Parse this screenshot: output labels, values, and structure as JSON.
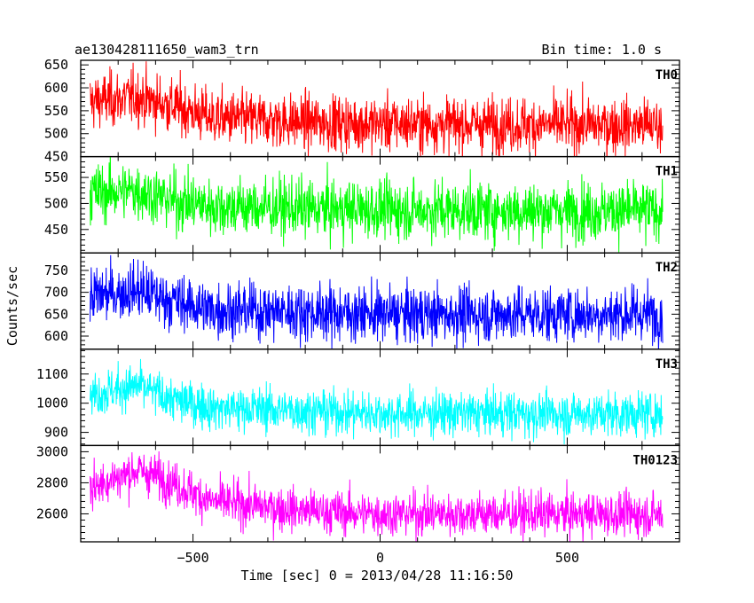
{
  "chart_data": {
    "type": "line",
    "title": "ae130428111650_wam3_trn",
    "bin_time_label": "Bin time: 1.0 s",
    "xlabel": "Time [sec] 0 = 2013/04/28 11:16:50",
    "ylabel": "Counts/sec",
    "xlim": [
      -800,
      800
    ],
    "x_ticks": [
      -500,
      0,
      500
    ],
    "x_tick_labels": [
      "−500",
      "0",
      "500"
    ],
    "x_data_range": [
      -775,
      755
    ],
    "grid": false,
    "panels": [
      {
        "name": "TH0",
        "color": "#ff0000",
        "ylim": [
          450,
          660
        ],
        "y_ticks": [
          450,
          500,
          550,
          600,
          650
        ],
        "y_tick_labels": [
          "450",
          "500",
          "550",
          "600",
          "650"
        ],
        "trend": [
          [
            -775,
            570
          ],
          [
            -650,
            580
          ],
          [
            -550,
            560
          ],
          [
            -450,
            535
          ],
          [
            -200,
            525
          ],
          [
            0,
            522
          ],
          [
            300,
            520
          ],
          [
            755,
            518
          ]
        ],
        "noise": 30
      },
      {
        "name": "TH1",
        "color": "#00ff00",
        "ylim": [
          405,
          590
        ],
        "y_ticks": [
          450,
          500,
          550
        ],
        "y_tick_labels": [
          "450",
          "500",
          "550"
        ],
        "trend": [
          [
            -775,
            520
          ],
          [
            -650,
            525
          ],
          [
            -550,
            505
          ],
          [
            -450,
            495
          ],
          [
            -200,
            490
          ],
          [
            0,
            488
          ],
          [
            300,
            486
          ],
          [
            755,
            486
          ]
        ],
        "noise": 28
      },
      {
        "name": "TH2",
        "color": "#0000ff",
        "ylim": [
          570,
          790
        ],
        "y_ticks": [
          600,
          650,
          700,
          750
        ],
        "y_tick_labels": [
          "600",
          "650",
          "700",
          "750"
        ],
        "trend": [
          [
            -775,
            690
          ],
          [
            -650,
            705
          ],
          [
            -550,
            680
          ],
          [
            -450,
            660
          ],
          [
            -200,
            655
          ],
          [
            0,
            650
          ],
          [
            300,
            650
          ],
          [
            755,
            650
          ]
        ],
        "noise": 32
      },
      {
        "name": "TH3",
        "color": "#00ffff",
        "ylim": [
          855,
          1185
        ],
        "y_ticks": [
          900,
          1000,
          1100
        ],
        "y_tick_labels": [
          "900",
          "1000",
          "1100"
        ],
        "trend": [
          [
            -775,
            1030
          ],
          [
            -650,
            1060
          ],
          [
            -550,
            1010
          ],
          [
            -450,
            985
          ],
          [
            -200,
            975
          ],
          [
            0,
            965
          ],
          [
            300,
            965
          ],
          [
            755,
            962
          ]
        ],
        "noise": 38
      },
      {
        "name": "TH0123",
        "color": "#ff00ff",
        "ylim": [
          2420,
          3040
        ],
        "y_ticks": [
          2600,
          2800,
          3000
        ],
        "y_tick_labels": [
          "2600",
          "2800",
          "3000"
        ],
        "trend": [
          [
            -775,
            2770
          ],
          [
            -650,
            2880
          ],
          [
            -580,
            2830
          ],
          [
            -450,
            2680
          ],
          [
            -200,
            2620
          ],
          [
            0,
            2600
          ],
          [
            300,
            2600
          ],
          [
            755,
            2595
          ]
        ],
        "noise": 70
      }
    ]
  }
}
